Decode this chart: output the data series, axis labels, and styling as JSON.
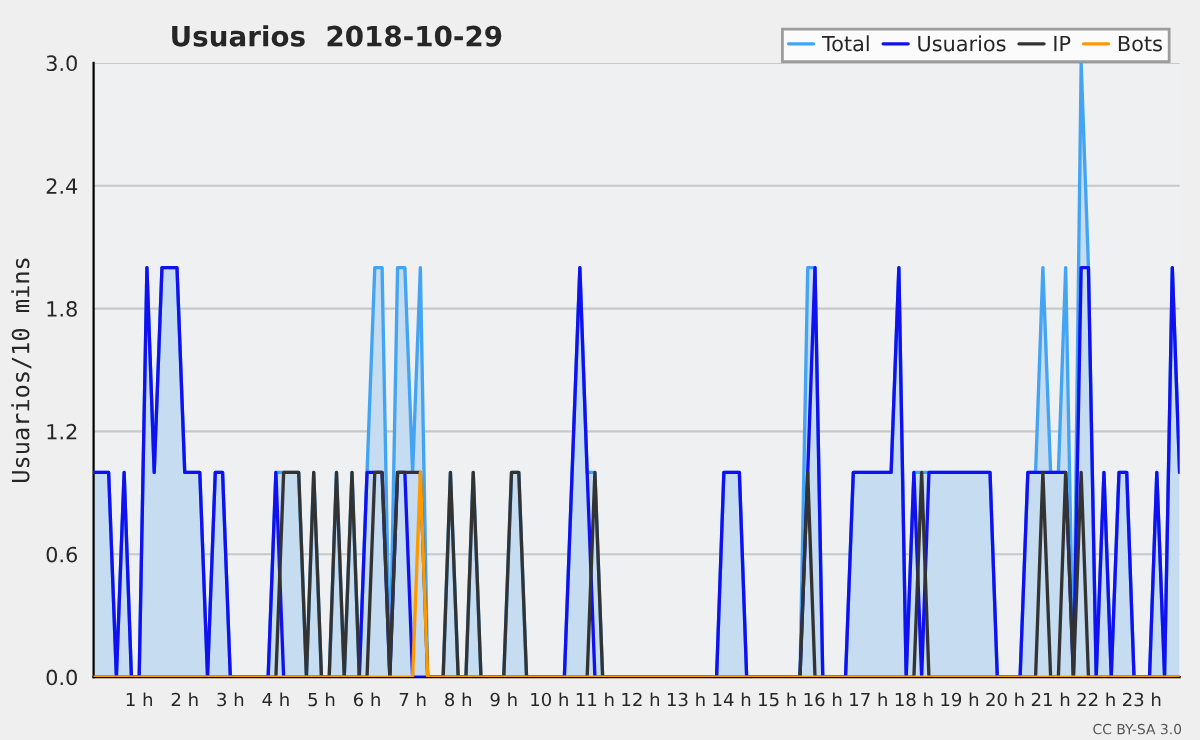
{
  "chart_data": {
    "type": "line",
    "title": "Usuarios  2018-10-29",
    "ylabel": "Usuarios/10 mins",
    "xlim": [
      0,
      23.83
    ],
    "ylim": [
      0,
      3.0
    ],
    "xticks": [
      {
        "value": 1,
        "label": "1 h"
      },
      {
        "value": 2,
        "label": "2 h"
      },
      {
        "value": 3,
        "label": "3 h"
      },
      {
        "value": 4,
        "label": "4 h"
      },
      {
        "value": 5,
        "label": "5 h"
      },
      {
        "value": 6,
        "label": "6 h"
      },
      {
        "value": 7,
        "label": "7 h"
      },
      {
        "value": 8,
        "label": "8 h"
      },
      {
        "value": 9,
        "label": "9 h"
      },
      {
        "value": 10,
        "label": "10 h"
      },
      {
        "value": 11,
        "label": "11 h"
      },
      {
        "value": 12,
        "label": "12 h"
      },
      {
        "value": 13,
        "label": "13 h"
      },
      {
        "value": 14,
        "label": "14 h"
      },
      {
        "value": 15,
        "label": "15 h"
      },
      {
        "value": 16,
        "label": "16 h"
      },
      {
        "value": 17,
        "label": "17 h"
      },
      {
        "value": 18,
        "label": "18 h"
      },
      {
        "value": 19,
        "label": "19 h"
      },
      {
        "value": 20,
        "label": "20 h"
      },
      {
        "value": 21,
        "label": "21 h"
      },
      {
        "value": 22,
        "label": "22 h"
      },
      {
        "value": 23,
        "label": "23 h"
      }
    ],
    "yticks": [
      {
        "value": 0,
        "label": "0.0"
      },
      {
        "value": 0.6,
        "label": "0.6"
      },
      {
        "value": 1.2,
        "label": "1.2"
      },
      {
        "value": 1.8,
        "label": "1.8"
      },
      {
        "value": 2.4,
        "label": "2.4"
      },
      {
        "value": 3.0,
        "label": "3.0"
      }
    ],
    "grid": "y",
    "legend": "top right",
    "line_style": "solid",
    "marker": "none",
    "annotations": [
      "CC BY-SA 3.0"
    ],
    "series": [
      {
        "name": "Total",
        "type": "area",
        "color": "#44a4f4",
        "x": [
          0,
          0.33,
          0.5,
          0.67,
          0.83,
          1.0,
          1.17,
          1.33,
          1.5,
          1.83,
          2.0,
          2.33,
          2.5,
          2.67,
          2.83,
          3.0,
          3.83,
          4.0,
          4.5,
          4.67,
          4.83,
          5.0,
          5.17,
          5.33,
          5.5,
          5.67,
          5.83,
          6.0,
          6.17,
          6.33,
          6.5,
          6.67,
          6.83,
          7.0,
          7.17,
          7.33,
          7.67,
          7.83,
          8.0,
          8.17,
          8.33,
          8.5,
          9.0,
          9.17,
          9.33,
          9.5,
          10.33,
          10.67,
          10.83,
          11.0,
          11.17,
          13.67,
          13.83,
          14.17,
          14.33,
          15.5,
          15.67,
          15.83,
          16.0,
          16.5,
          16.67,
          17.5,
          17.67,
          17.83,
          18.0,
          18.33,
          19.67,
          19.83,
          20.33,
          20.5,
          20.67,
          20.83,
          21.0,
          21.17,
          21.33,
          21.5,
          21.67,
          21.83,
          22.0,
          22.17,
          22.33,
          22.5,
          22.67,
          22.83,
          23.17,
          23.33,
          23.5,
          23.67,
          23.83
        ],
        "values": [
          1,
          1,
          0,
          1,
          0,
          0,
          2,
          1,
          2,
          2,
          1,
          1,
          0,
          1,
          1,
          0,
          0,
          1,
          1,
          0,
          1,
          0,
          0,
          1,
          0,
          1,
          0,
          1,
          2,
          2,
          0,
          2,
          2,
          1,
          2,
          0,
          0,
          1,
          0,
          0,
          1,
          0,
          0,
          1,
          1,
          0,
          0,
          2,
          1,
          1,
          0,
          0,
          1,
          1,
          0,
          0,
          2,
          2,
          0,
          0,
          1,
          1,
          2,
          0,
          1,
          1,
          1,
          0,
          0,
          1,
          1,
          2,
          1,
          1,
          2,
          0,
          3,
          2,
          0,
          1,
          0,
          1,
          1,
          0,
          0,
          1,
          0,
          2,
          1
        ]
      },
      {
        "name": "Usuarios",
        "color": "#1010f0",
        "x": [
          0,
          0.33,
          0.5,
          0.67,
          0.83,
          1.0,
          1.17,
          1.33,
          1.5,
          1.83,
          2.0,
          2.33,
          2.5,
          2.67,
          2.83,
          3.0,
          3.83,
          4.0,
          4.17,
          5.83,
          6.0,
          6.33,
          6.5,
          6.67,
          6.83,
          7.0,
          10.33,
          10.67,
          10.83,
          11.0,
          13.67,
          13.83,
          14.17,
          14.33,
          15.5,
          15.67,
          15.83,
          16.0,
          16.5,
          16.67,
          17.5,
          17.67,
          17.83,
          18.0,
          18.17,
          18.33,
          19.67,
          19.83,
          20.33,
          20.5,
          21.33,
          21.5,
          21.67,
          21.83,
          22.0,
          22.17,
          22.33,
          22.5,
          22.67,
          22.83,
          23.17,
          23.33,
          23.5,
          23.67,
          23.83
        ],
        "values": [
          1,
          1,
          0,
          1,
          0,
          0,
          2,
          1,
          2,
          2,
          1,
          1,
          0,
          1,
          1,
          0,
          0,
          1,
          0,
          0,
          1,
          1,
          0,
          1,
          1,
          0,
          0,
          2,
          1,
          0,
          0,
          1,
          1,
          0,
          0,
          1,
          2,
          0,
          0,
          1,
          1,
          2,
          0,
          1,
          0,
          1,
          1,
          0,
          0,
          1,
          1,
          0,
          2,
          2,
          0,
          1,
          0,
          1,
          1,
          0,
          0,
          1,
          0,
          2,
          1
        ]
      },
      {
        "name": "IP",
        "color": "#333333",
        "x": [
          0,
          4.0,
          4.17,
          4.5,
          4.67,
          4.83,
          5.0,
          5.17,
          5.33,
          5.5,
          5.67,
          5.83,
          6.0,
          6.17,
          6.33,
          6.5,
          6.67,
          7.17,
          7.33,
          7.67,
          7.83,
          8.0,
          8.17,
          8.33,
          8.5,
          9.0,
          9.17,
          9.33,
          9.5,
          10.83,
          11.0,
          11.17,
          15.5,
          15.67,
          15.83,
          18.0,
          18.17,
          18.33,
          20.67,
          20.83,
          21.0,
          21.17,
          21.33,
          21.5,
          21.67,
          21.83,
          23.83
        ],
        "values": [
          0,
          0,
          1,
          1,
          0,
          1,
          0,
          0,
          1,
          0,
          1,
          0,
          0,
          1,
          1,
          0,
          1,
          1,
          0,
          0,
          1,
          0,
          0,
          1,
          0,
          0,
          1,
          1,
          0,
          0,
          1,
          0,
          0,
          1,
          0,
          0,
          1,
          0,
          0,
          1,
          0,
          0,
          1,
          0,
          1,
          0,
          0
        ]
      },
      {
        "name": "Bots",
        "color": "#ff9900",
        "x": [
          0,
          7.0,
          7.17,
          7.33,
          23.83
        ],
        "values": [
          0,
          0,
          1,
          0,
          0
        ]
      }
    ]
  }
}
